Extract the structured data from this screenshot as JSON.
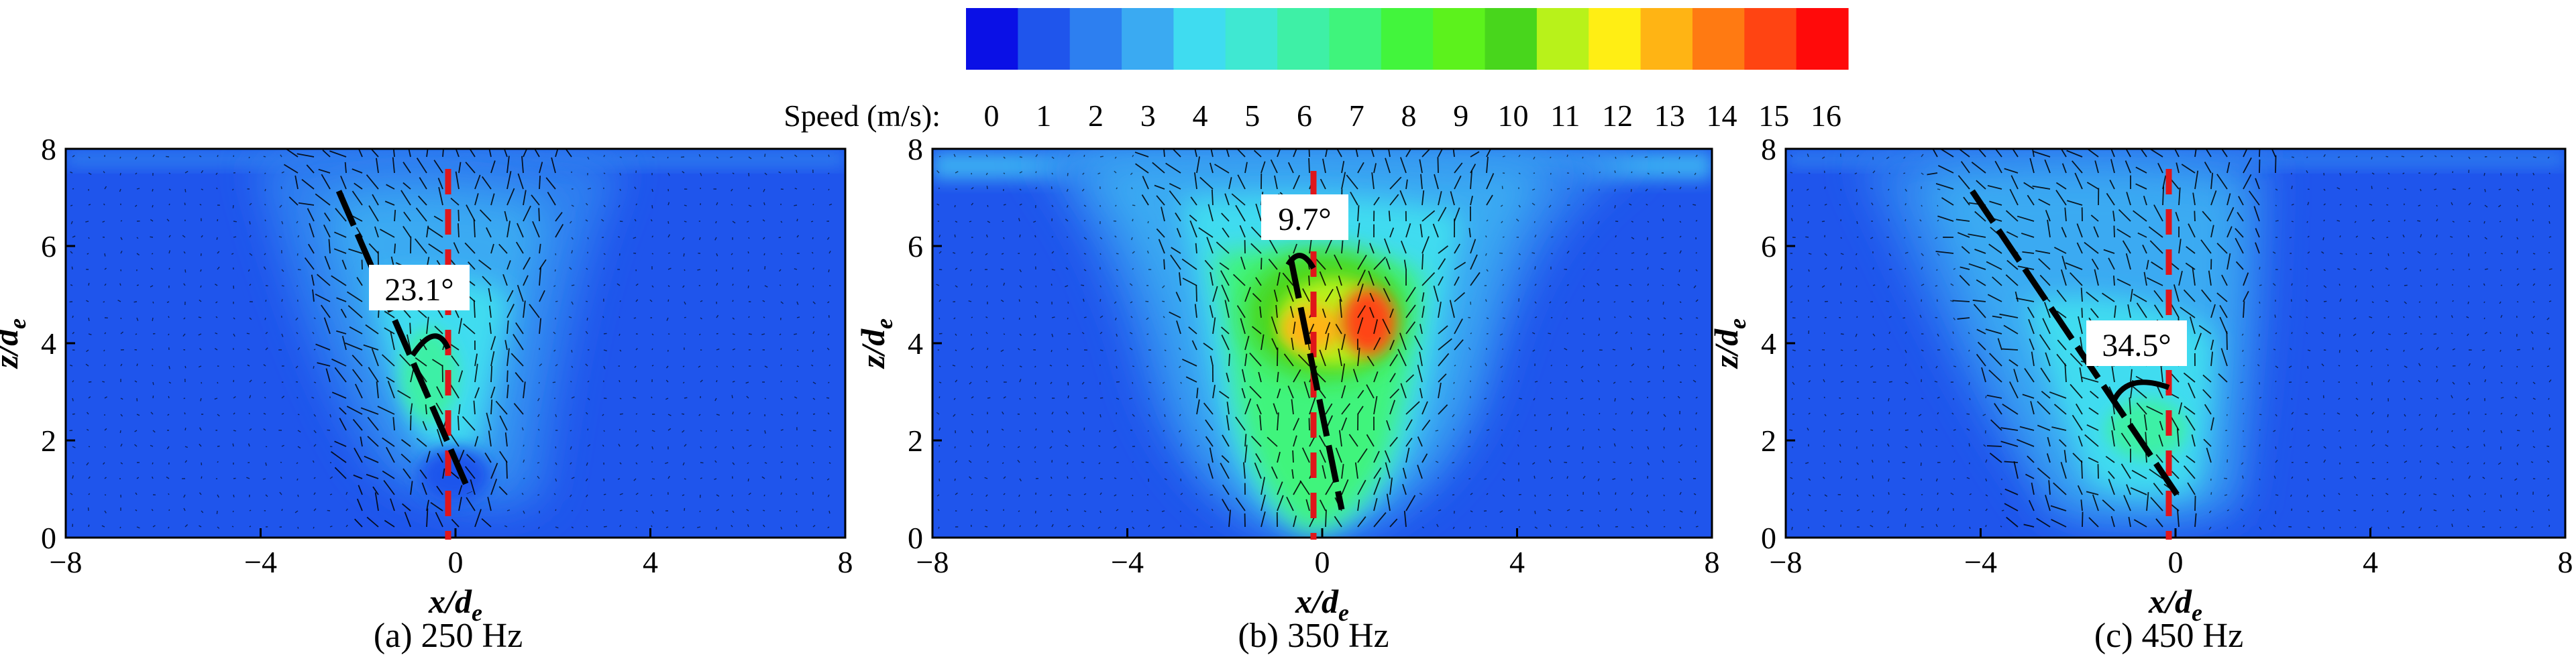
{
  "colorbar": {
    "label": "Speed (m/s):",
    "ticks": [
      "0",
      "1",
      "2",
      "3",
      "4",
      "5",
      "6",
      "7",
      "8",
      "9",
      "10",
      "11",
      "12",
      "13",
      "14",
      "15",
      "16"
    ],
    "colors": [
      "#0a10e6",
      "#1f55ec",
      "#2d7ff0",
      "#3aaaf2",
      "#3fdcf0",
      "#3fe8d2",
      "#3ef0a6",
      "#3ff47c",
      "#42f53c",
      "#5cf21c",
      "#48d61c",
      "#b8f21a",
      "#ffee14",
      "#ffb414",
      "#ff7a12",
      "#ff4412",
      "#ff0a0a"
    ]
  },
  "colors": {
    "field_background": "#1f55ec",
    "field_mid": "#2d7ff0",
    "field_light": "#3aaaf2",
    "field_cyan": "#3fdcf0",
    "field_green": "#42f53c",
    "field_yellow": "#ffb414",
    "field_red": "#ff4412",
    "centerline": "#e0161a",
    "trajectory": "#000000"
  },
  "panels": [
    {
      "id": "a",
      "caption": "(a) 250 Hz",
      "angle_label": "23.1°",
      "angle_deg": 23.1
    },
    {
      "id": "b",
      "caption": "(b) 350 Hz",
      "angle_label": "9.7°",
      "angle_deg": 9.7
    },
    {
      "id": "c",
      "caption": "(c) 450 Hz",
      "angle_label": "34.5°",
      "angle_deg": 34.5
    }
  ],
  "chart_data": {
    "type": "heatmap",
    "xlabel": "x/de",
    "ylabel": "z/de",
    "xlim": [
      -8,
      8
    ],
    "ylim": [
      0,
      8
    ],
    "xticks": [
      "−8",
      "−4",
      "0",
      "4",
      "8"
    ],
    "yticks": [
      "0",
      "2",
      "4",
      "6",
      "8"
    ],
    "colorbar_range": [
      0,
      16
    ],
    "series": [
      {
        "caption": "(a) 250 Hz",
        "deflection_angle_deg": 23.1
      },
      {
        "caption": "(b) 350 Hz",
        "deflection_angle_deg": 9.7
      },
      {
        "caption": "(c) 450 Hz",
        "deflection_angle_deg": 34.5
      }
    ]
  }
}
